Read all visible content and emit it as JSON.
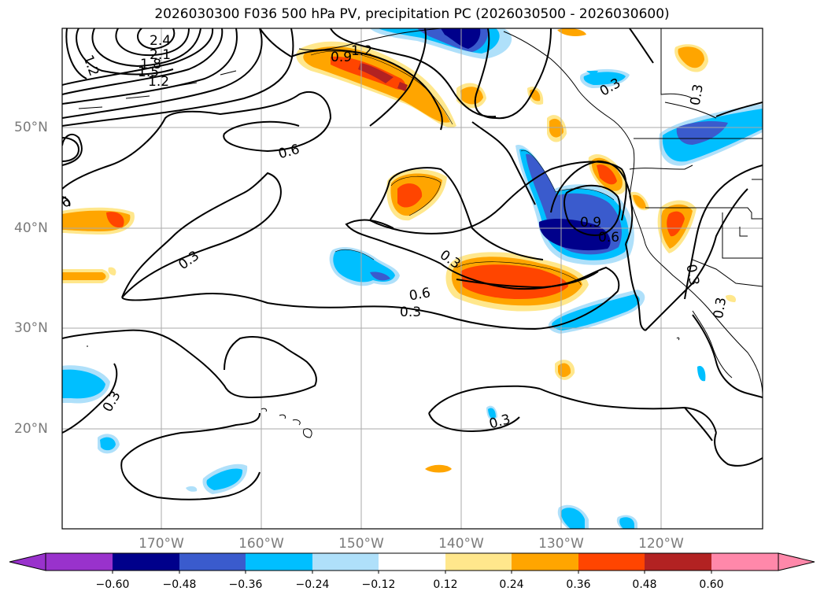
{
  "title": "2026030300 F036 500 hPa PV, precipitation PC (2026030500 - 2026030600)",
  "lat_labels": [
    "50°N",
    "40°N",
    "30°N",
    "20°N"
  ],
  "lon_labels": [
    "170°W",
    "160°W",
    "150°W",
    "140°W",
    "130°W",
    "120°W"
  ],
  "contour_labels": [
    "2.4",
    "2.1",
    "1.8",
    "1.5",
    "1.2",
    "1.2",
    "0.9",
    "1.2",
    "0.6",
    "0.3",
    "0.3",
    "0.9",
    "0.6",
    "0.6",
    "0.3",
    "0.3",
    "0.3",
    "0.3",
    "0.3",
    "0.3",
    "0.3",
    "6"
  ],
  "colorbar": {
    "tick_labels": [
      "−0.60",
      "−0.48",
      "−0.36",
      "−0.24",
      "−0.12",
      "0.12",
      "0.24",
      "0.36",
      "0.48",
      "0.60"
    ],
    "colors": [
      "#9932cc",
      "#00008b",
      "#3a5bcd",
      "#00bfff",
      "#afe0fa",
      "#ffffff",
      "#ffe78c",
      "#ffa500",
      "#ff4500",
      "#b22222",
      "#ff88aa"
    ]
  }
}
